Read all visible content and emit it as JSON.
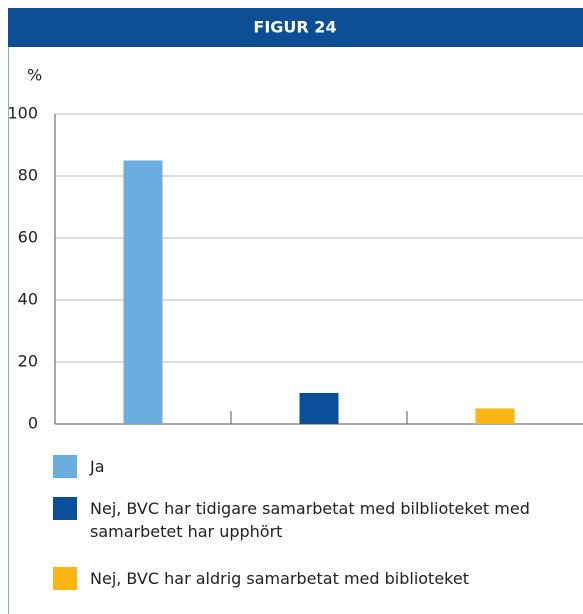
{
  "chart_data": {
    "type": "bar",
    "title": "FIGUR 24",
    "y_label": "%",
    "categories": [
      null,
      null,
      null
    ],
    "series": [
      {
        "name": "Ja",
        "color": "#6aaee0",
        "values": [
          85,
          null,
          null
        ]
      },
      {
        "name": "Nej, BVC har tidigare samarbetat med bilblioteket med samarbetet har upphört",
        "color": "#0b4f9b",
        "values": [
          null,
          10,
          null
        ]
      },
      {
        "name": "Nej, BVC har aldrig samarbetat med biblioteket",
        "color": "#fbb515",
        "values": [
          null,
          null,
          5
        ]
      }
    ],
    "ylim": [
      0,
      100
    ],
    "yticks": [
      0,
      20,
      40,
      60,
      80,
      100
    ],
    "grid": true
  }
}
